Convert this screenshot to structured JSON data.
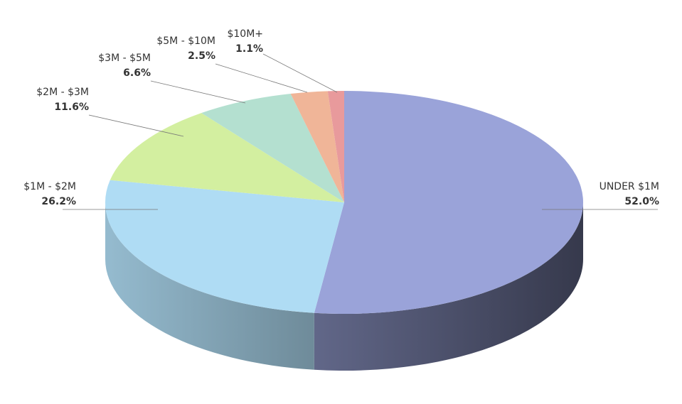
{
  "chart_data": {
    "type": "pie",
    "categories": [
      "UNDER $1M",
      "$1M - $2M",
      "$2M - $3M",
      "$3M - $5M",
      "$5M - $10M",
      "$10M+"
    ],
    "values": [
      52.0,
      26.2,
      11.6,
      6.6,
      2.5,
      1.1
    ],
    "value_labels": [
      "52.0%",
      "26.2%",
      "11.6%",
      "6.6%",
      "2.5%",
      "1.1%"
    ],
    "colors": [
      "#9aa3d9",
      "#afdcf4",
      "#d3efa0",
      "#b4e0d0",
      "#f0b598",
      "#e89a9c"
    ]
  }
}
